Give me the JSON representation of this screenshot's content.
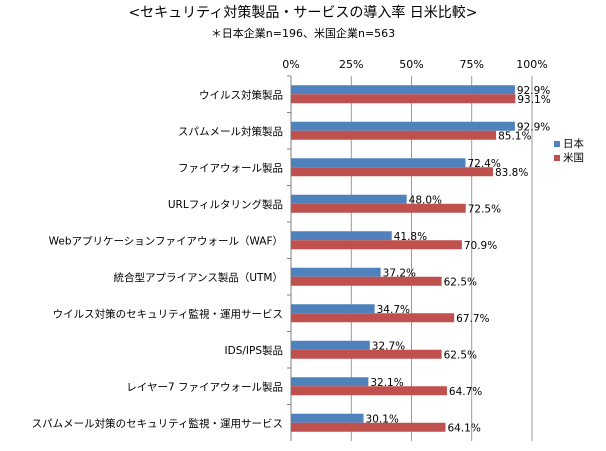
{
  "chart_data": {
    "type": "bar",
    "orientation": "horizontal",
    "title": "<セキュリティ対策製品・サービスの導入率 日米比較>",
    "subtitle": "＊日本企業n=196、米国企業n=563",
    "categories": [
      "ウイルス対策製品",
      "スパムメール対策製品",
      "ファイアウォール製品",
      "URLフィルタリング製品",
      "Webアプリケーションファイアウォール（WAF）",
      "統合型アプライアンス製品（UTM）",
      "ウイルス対策のセキュリティ監視・運用サービス",
      "IDS/IPS製品",
      "レイヤー7 ファイアウォール製品",
      "スパムメール対策のセキュリティ監視・運用サービス"
    ],
    "series": [
      {
        "name": "日本",
        "color": "#4F81BD",
        "values": [
          92.9,
          92.9,
          72.4,
          48.0,
          41.8,
          37.2,
          34.7,
          32.7,
          32.1,
          30.1
        ],
        "labels": [
          "92.9%",
          "92.9%",
          "72.4%",
          "48.0%",
          "41.8%",
          "37.2%",
          "34.7%",
          "32.7%",
          "32.1%",
          "30.1%"
        ]
      },
      {
        "name": "米国",
        "color": "#C0504D",
        "values": [
          93.1,
          85.1,
          83.8,
          72.5,
          70.9,
          62.5,
          67.7,
          62.5,
          64.7,
          64.1
        ],
        "labels": [
          "93.1%",
          "85.1%",
          "83.8%",
          "72.5%",
          "70.9%",
          "62.5%",
          "67.7%",
          "62.5%",
          "64.7%",
          "64.1%"
        ]
      }
    ],
    "x_ticks": [
      "0%",
      "25%",
      "50%",
      "75%",
      "100%"
    ],
    "x_tick_values": [
      0,
      25,
      50,
      75,
      100
    ],
    "xlim": [
      0,
      100
    ],
    "grid": true,
    "legend_position": "right"
  }
}
